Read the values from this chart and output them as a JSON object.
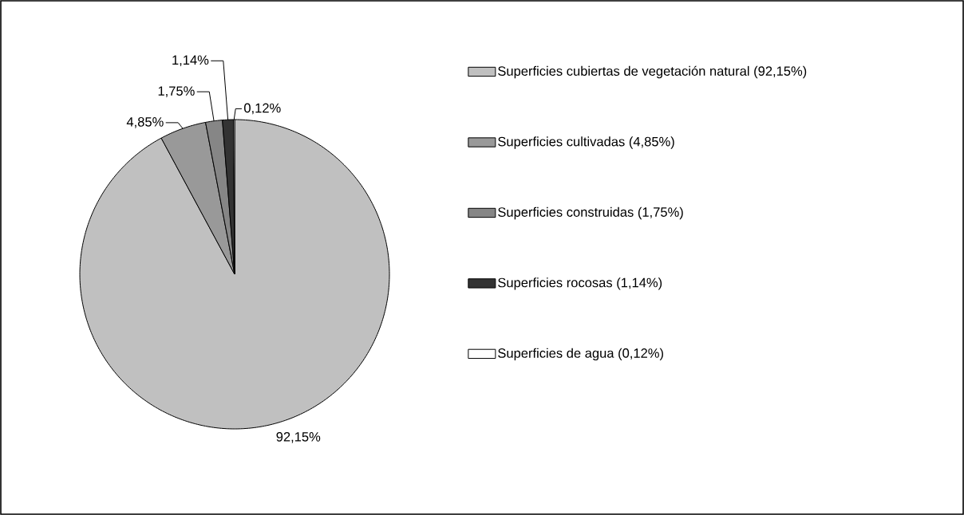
{
  "chart_data": {
    "type": "pie",
    "categories": [
      "Superficies cubiertas de vegetación natural (92,15%)",
      "Superficies cultivadas (4,85%)",
      "Superficies construidas (1,75%)",
      "Superficies rocosas (1,14%)",
      "Superficies de agua (0,12%)"
    ],
    "values": [
      92.15,
      4.85,
      1.75,
      1.14,
      0.12
    ],
    "colors": [
      "#c0c0c0",
      "#999999",
      "#868686",
      "#333333",
      "#ffffff"
    ],
    "value_labels": [
      "92,15%",
      "4,85%",
      "1,75%",
      "1,14%",
      "0,12%"
    ],
    "legend": "right"
  }
}
